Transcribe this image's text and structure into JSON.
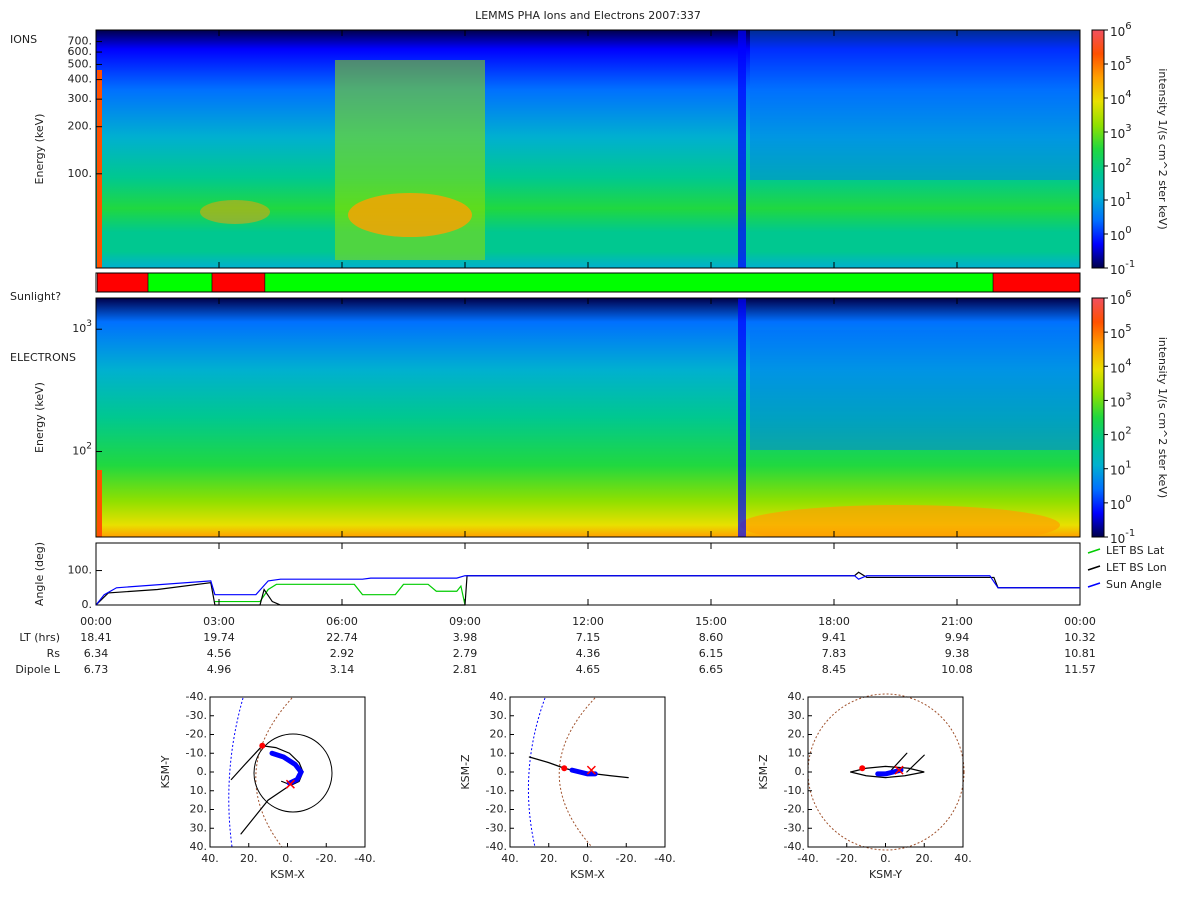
{
  "title": "LEMMS PHA Ions and Electrons  2007:337",
  "time_axis": {
    "xlim": [
      0,
      24
    ],
    "xticks": [
      {
        "value": 0,
        "label": "00:00"
      },
      {
        "value": 3,
        "label": "03:00"
      },
      {
        "value": 6,
        "label": "06:00"
      },
      {
        "value": 9,
        "label": "09:00"
      },
      {
        "value": 12,
        "label": "12:00"
      },
      {
        "value": 15,
        "label": "15:00"
      },
      {
        "value": 18,
        "label": "18:00"
      },
      {
        "value": 21,
        "label": "21:00"
      },
      {
        "value": 24,
        "label": "00:00"
      }
    ]
  },
  "chart_data": [
    {
      "type": "spectrogram",
      "label": "IONS",
      "ylabel": "Energy (keV)",
      "log_scale": true,
      "ylim": [
        25,
        830
      ],
      "yticks": [
        {
          "value": 100,
          "label": "100."
        },
        {
          "value": 200,
          "label": "200."
        },
        {
          "value": 300,
          "label": "300."
        },
        {
          "value": 400,
          "label": "400."
        },
        {
          "value": 500,
          "label": "500."
        },
        {
          "value": 600,
          "label": "600."
        },
        {
          "value": 700,
          "label": "700."
        }
      ],
      "zlabel": "intensity 1/(s cm^2 ster keV)",
      "zlim": [
        0.1,
        1000000
      ],
      "zticks": [
        {
          "value": 0.1,
          "label": "10",
          "exponent": "-1"
        },
        {
          "value": 1,
          "label": "10",
          "exponent": "0"
        },
        {
          "value": 10,
          "label": "10",
          "exponent": "1"
        },
        {
          "value": 100,
          "label": "10",
          "exponent": "2"
        },
        {
          "value": 1000,
          "label": "10",
          "exponent": "3"
        },
        {
          "value": 10000,
          "label": "10",
          "exponent": "4"
        },
        {
          "value": 100000,
          "label": "10",
          "exponent": "5"
        },
        {
          "value": 1000000,
          "label": "10",
          "exponent": "6"
        }
      ],
      "colormap": [
        "#00004a",
        "#0000ff",
        "#0070ff",
        "#00b0d0",
        "#00c890",
        "#20d840",
        "#90e000",
        "#e8e000",
        "#ffa000",
        "#ff5000",
        "#f05060"
      ]
    },
    {
      "type": "timeline",
      "label": "Sunlight?",
      "segments": [
        {
          "start": 0,
          "end": 0.03,
          "color": "#ffffff"
        },
        {
          "start": 0.03,
          "end": 1.27,
          "color": "#ff0000"
        },
        {
          "start": 1.27,
          "end": 2.83,
          "color": "#00ff00"
        },
        {
          "start": 2.83,
          "end": 4.12,
          "color": "#ff0000"
        },
        {
          "start": 4.12,
          "end": 21.88,
          "color": "#00ff00"
        },
        {
          "start": 21.88,
          "end": 24,
          "color": "#ff0000"
        }
      ]
    },
    {
      "type": "spectrogram",
      "label": "ELECTRONS",
      "ylabel": "Energy (keV)",
      "log_scale": true,
      "ylim": [
        20,
        1800
      ],
      "yticks": [
        {
          "value": 100,
          "label": "10",
          "exponent": "2"
        },
        {
          "value": 1000,
          "label": "10",
          "exponent": "3"
        }
      ],
      "zlabel": "intensity 1/(s cm^2 ster keV)",
      "zlim": [
        0.1,
        1000000
      ],
      "zticks": [
        {
          "value": 0.1,
          "label": "10",
          "exponent": "-1"
        },
        {
          "value": 1,
          "label": "10",
          "exponent": "0"
        },
        {
          "value": 10,
          "label": "10",
          "exponent": "1"
        },
        {
          "value": 100,
          "label": "10",
          "exponent": "2"
        },
        {
          "value": 1000,
          "label": "10",
          "exponent": "3"
        },
        {
          "value": 10000,
          "label": "10",
          "exponent": "4"
        },
        {
          "value": 100000,
          "label": "10",
          "exponent": "5"
        },
        {
          "value": 1000000,
          "label": "10",
          "exponent": "6"
        }
      ],
      "colormap": [
        "#00004a",
        "#0000ff",
        "#0070ff",
        "#00b0d0",
        "#00c890",
        "#20d840",
        "#90e000",
        "#e8e000",
        "#ffa000",
        "#ff5000",
        "#f05060"
      ]
    },
    {
      "type": "line",
      "ylabel": "Angle (deg)",
      "ylim": [
        0,
        180
      ],
      "yticks": [
        {
          "value": 0,
          "label": "0."
        },
        {
          "value": 100,
          "label": "100."
        }
      ],
      "series": [
        {
          "name": "LET BS Lat",
          "color": "#00cc00",
          "x": [
            2.9,
            4.0,
            4.2,
            4.4,
            6.3,
            6.5,
            7.3,
            7.5,
            8.1,
            8.3,
            8.8,
            8.9,
            9.0
          ],
          "values": [
            10,
            10,
            45,
            60,
            60,
            30,
            30,
            60,
            60,
            40,
            40,
            55,
            0
          ]
        },
        {
          "name": "LET BS Lon",
          "color": "#000000",
          "x": [
            0,
            0.3,
            1.5,
            2.8,
            2.9,
            4.0,
            4.1,
            4.3,
            4.5,
            9.0,
            9.05,
            18.5,
            18.6,
            18.8,
            21.9,
            22.0,
            24
          ],
          "values": [
            0,
            35,
            45,
            65,
            0,
            0,
            45,
            10,
            0,
            0,
            85,
            85,
            95,
            80,
            80,
            50,
            50
          ]
        },
        {
          "name": "Sun Angle",
          "color": "#0000ff",
          "x": [
            0,
            0.2,
            0.5,
            2.8,
            2.9,
            3.9,
            4.2,
            4.5,
            6.5,
            6.7,
            8.8,
            9.0,
            18.0,
            18.5,
            18.6,
            18.8,
            21.8,
            22.0,
            24
          ],
          "values": [
            0,
            30,
            50,
            70,
            30,
            30,
            70,
            75,
            75,
            78,
            78,
            85,
            85,
            85,
            75,
            85,
            85,
            50,
            50
          ]
        }
      ]
    }
  ],
  "ephemeris": {
    "rows": [
      {
        "label": "LT (hrs)",
        "values": [
          "18.41",
          "19.74",
          "22.74",
          "3.98",
          "7.15",
          "8.60",
          "9.41",
          "9.94",
          "10.32"
        ]
      },
      {
        "label": "Rs",
        "values": [
          "6.34",
          "4.56",
          "2.92",
          "2.79",
          "4.36",
          "6.15",
          "7.83",
          "9.38",
          "10.81"
        ]
      },
      {
        "label": "Dipole L",
        "values": [
          "6.73",
          "4.96",
          "3.14",
          "2.81",
          "4.65",
          "6.65",
          "8.45",
          "10.08",
          "11.57"
        ]
      }
    ]
  },
  "orbits": [
    {
      "xlabel": "KSM-X",
      "ylabel": "KSM-Y",
      "xlim": [
        40,
        -40
      ],
      "ylim": [
        40,
        -40
      ],
      "xticks": [
        {
          "value": 40,
          "label": "40."
        },
        {
          "value": 20,
          "label": "20."
        },
        {
          "value": 0,
          "label": "0."
        },
        {
          "value": -20,
          "label": "-20."
        },
        {
          "value": -40,
          "label": "-40."
        }
      ],
      "yticks": [
        {
          "value": -40,
          "label": "-40."
        },
        {
          "value": -30,
          "label": "-30."
        },
        {
          "value": -20,
          "label": "-20."
        },
        {
          "value": -10,
          "label": "-10."
        },
        {
          "value": 0,
          "label": "0."
        },
        {
          "value": 10,
          "label": "10."
        },
        {
          "value": 20,
          "label": "20."
        },
        {
          "value": 30,
          "label": "30."
        },
        {
          "value": 40,
          "label": "40."
        }
      ],
      "series": [
        {
          "color": "#000000",
          "x": [
            29,
            22,
            13,
            6,
            -1,
            -6,
            -8,
            -6,
            -2,
            3
          ],
          "y": [
            4,
            -4,
            -14,
            -13,
            -10,
            -5,
            0,
            5,
            7,
            5
          ]
        },
        {
          "color": "#000000",
          "x": [
            24,
            10,
            0
          ],
          "y": [
            33,
            15,
            8
          ]
        },
        {
          "color": "#0000ff",
          "x": [
            8,
            2,
            -4,
            -7,
            -5,
            -1
          ],
          "y": [
            -10,
            -8,
            -4,
            0,
            4,
            6
          ]
        }
      ],
      "markers": [
        {
          "shape": "dot",
          "color": "#ff0000",
          "x": 13,
          "y": -14
        },
        {
          "shape": "cross",
          "color": "#ff0000",
          "x": -1.5,
          "y": 6.5
        }
      ]
    },
    {
      "xlabel": "KSM-X",
      "ylabel": "KSM-Z",
      "xlim": [
        40,
        -40
      ],
      "ylim": [
        -40,
        40
      ],
      "xticks": [
        {
          "value": 40,
          "label": "40."
        },
        {
          "value": 20,
          "label": "20."
        },
        {
          "value": 0,
          "label": "0."
        },
        {
          "value": -20,
          "label": "-20."
        },
        {
          "value": -40,
          "label": "-40."
        }
      ],
      "yticks": [
        {
          "value": 40,
          "label": "40."
        },
        {
          "value": 30,
          "label": "30."
        },
        {
          "value": 20,
          "label": "20."
        },
        {
          "value": 10,
          "label": "10."
        },
        {
          "value": 0,
          "label": "0."
        },
        {
          "value": -10,
          "label": "-10."
        },
        {
          "value": -20,
          "label": "-20."
        },
        {
          "value": -30,
          "label": "-30."
        },
        {
          "value": -40,
          "label": "-40."
        }
      ],
      "series": [
        {
          "color": "#000000",
          "x": [
            30,
            20,
            12,
            4,
            -4,
            -12,
            -21
          ],
          "y": [
            8,
            5,
            2,
            0,
            -1,
            -2,
            -3
          ]
        },
        {
          "color": "#0000ff",
          "x": [
            8,
            4,
            0,
            -4
          ],
          "y": [
            1,
            0,
            -1,
            -1
          ]
        }
      ],
      "markers": [
        {
          "shape": "dot",
          "color": "#ff0000",
          "x": 12,
          "y": 2
        },
        {
          "shape": "cross",
          "color": "#ff0000",
          "x": -2,
          "y": 1
        }
      ]
    },
    {
      "xlabel": "KSM-Y",
      "ylabel": "KSM-Z",
      "xlim": [
        -40,
        40
      ],
      "ylim": [
        -40,
        40
      ],
      "xticks": [
        {
          "value": -40,
          "label": "-40."
        },
        {
          "value": -20,
          "label": "-20."
        },
        {
          "value": 0,
          "label": "0."
        },
        {
          "value": 20,
          "label": "20."
        },
        {
          "value": 40,
          "label": "40."
        }
      ],
      "yticks": [
        {
          "value": 40,
          "label": "40."
        },
        {
          "value": 30,
          "label": "30."
        },
        {
          "value": 20,
          "label": "20."
        },
        {
          "value": 10,
          "label": "10."
        },
        {
          "value": 0,
          "label": "0."
        },
        {
          "value": -10,
          "label": "-10."
        },
        {
          "value": -20,
          "label": "-20."
        },
        {
          "value": -30,
          "label": "-30."
        },
        {
          "value": -40,
          "label": "-40."
        }
      ],
      "series": [
        {
          "color": "#000000",
          "x": [
            -18,
            -10,
            0,
            10,
            20,
            12,
            0,
            -10,
            -18
          ],
          "y": [
            0,
            -2,
            -3,
            -2,
            0,
            2,
            3,
            2,
            0
          ]
        },
        {
          "color": "#000000",
          "x": [
            3,
            11
          ],
          "y": [
            1,
            10
          ]
        },
        {
          "color": "#000000",
          "x": [
            11,
            20
          ],
          "y": [
            0,
            9
          ]
        },
        {
          "color": "#0000ff",
          "x": [
            -4,
            0,
            4,
            8
          ],
          "y": [
            -1,
            -1,
            0,
            1
          ]
        }
      ],
      "markers": [
        {
          "shape": "dot",
          "color": "#ff0000",
          "x": -12,
          "y": 2
        },
        {
          "shape": "cross",
          "color": "#ff0000",
          "x": 7,
          "y": 1
        }
      ]
    }
  ]
}
